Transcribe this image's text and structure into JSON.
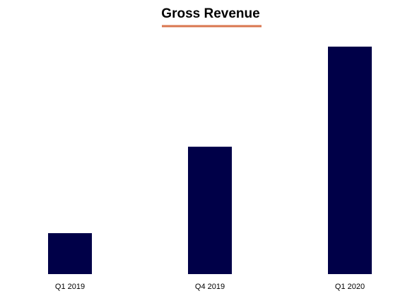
{
  "chart_data": {
    "type": "bar",
    "title": "Gross Revenue",
    "xlabel": "",
    "ylabel": "",
    "categories": [
      "Q1 2019",
      "Q4 2019",
      "Q1 2020"
    ],
    "values": [
      18,
      56,
      100
    ],
    "ylim": [
      0,
      100
    ],
    "grid": false,
    "legend": "none",
    "y_axis_visible": false,
    "colors": {
      "bar": "#000048",
      "title_underline": "#d9764f",
      "text": "#000000",
      "background": "#ffffff"
    }
  }
}
